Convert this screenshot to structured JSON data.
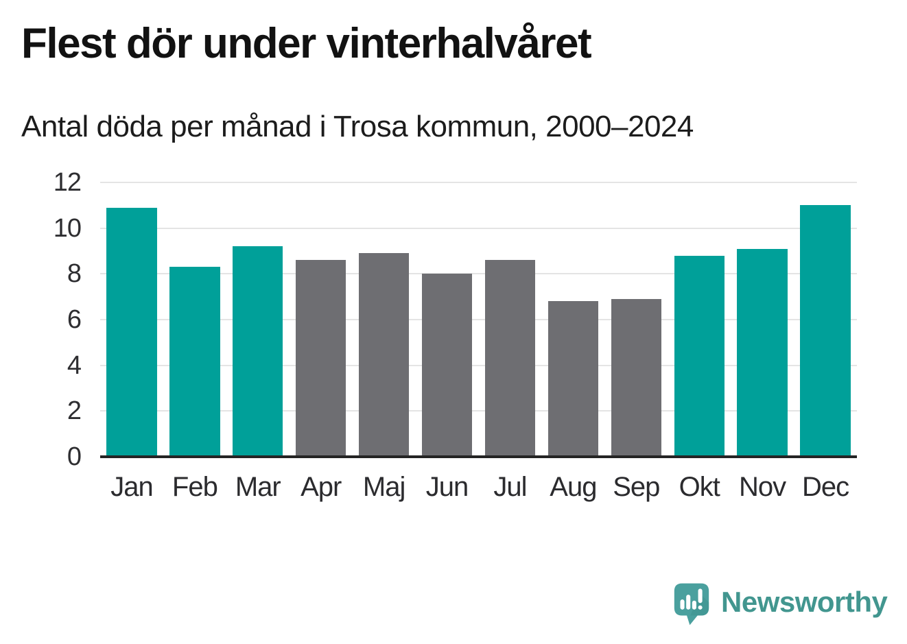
{
  "header": {
    "title": "Flest dör under vinterhalvåret",
    "subtitle": "Antal döda per månad i Trosa kommun, 2000–2024"
  },
  "chart_data": {
    "type": "bar",
    "title": "Flest dör under vinterhalvåret",
    "subtitle": "Antal döda per månad i Trosa kommun, 2000–2024",
    "categories": [
      "Jan",
      "Feb",
      "Mar",
      "Apr",
      "Maj",
      "Jun",
      "Jul",
      "Aug",
      "Sep",
      "Okt",
      "Nov",
      "Dec"
    ],
    "values": [
      10.9,
      8.3,
      9.2,
      8.6,
      8.9,
      8.0,
      8.6,
      6.8,
      6.9,
      8.8,
      9.1,
      11.0
    ],
    "series_color_keys": [
      "teal",
      "teal",
      "teal",
      "gray",
      "gray",
      "gray",
      "gray",
      "gray",
      "gray",
      "teal",
      "teal",
      "teal"
    ],
    "colors": {
      "teal": "#00a099",
      "gray": "#6e6e72"
    },
    "color_meaning": "teal = winter half-year months, gray = summer half-year months",
    "xlabel": "",
    "ylabel": "",
    "ylim": [
      0,
      12
    ],
    "yticks": [
      0,
      2,
      4,
      6,
      8,
      10,
      12
    ],
    "grid": "horizontal",
    "gridline_color": "#e4e4e4",
    "axis_line_color": "#242424",
    "legend": false
  },
  "footer": {
    "brand": "Newsworthy",
    "brand_color": "#42968f",
    "logo_icon": "speech-bubble-bar-chart-exclamation-icon",
    "logo_color": "#4aa09e"
  }
}
